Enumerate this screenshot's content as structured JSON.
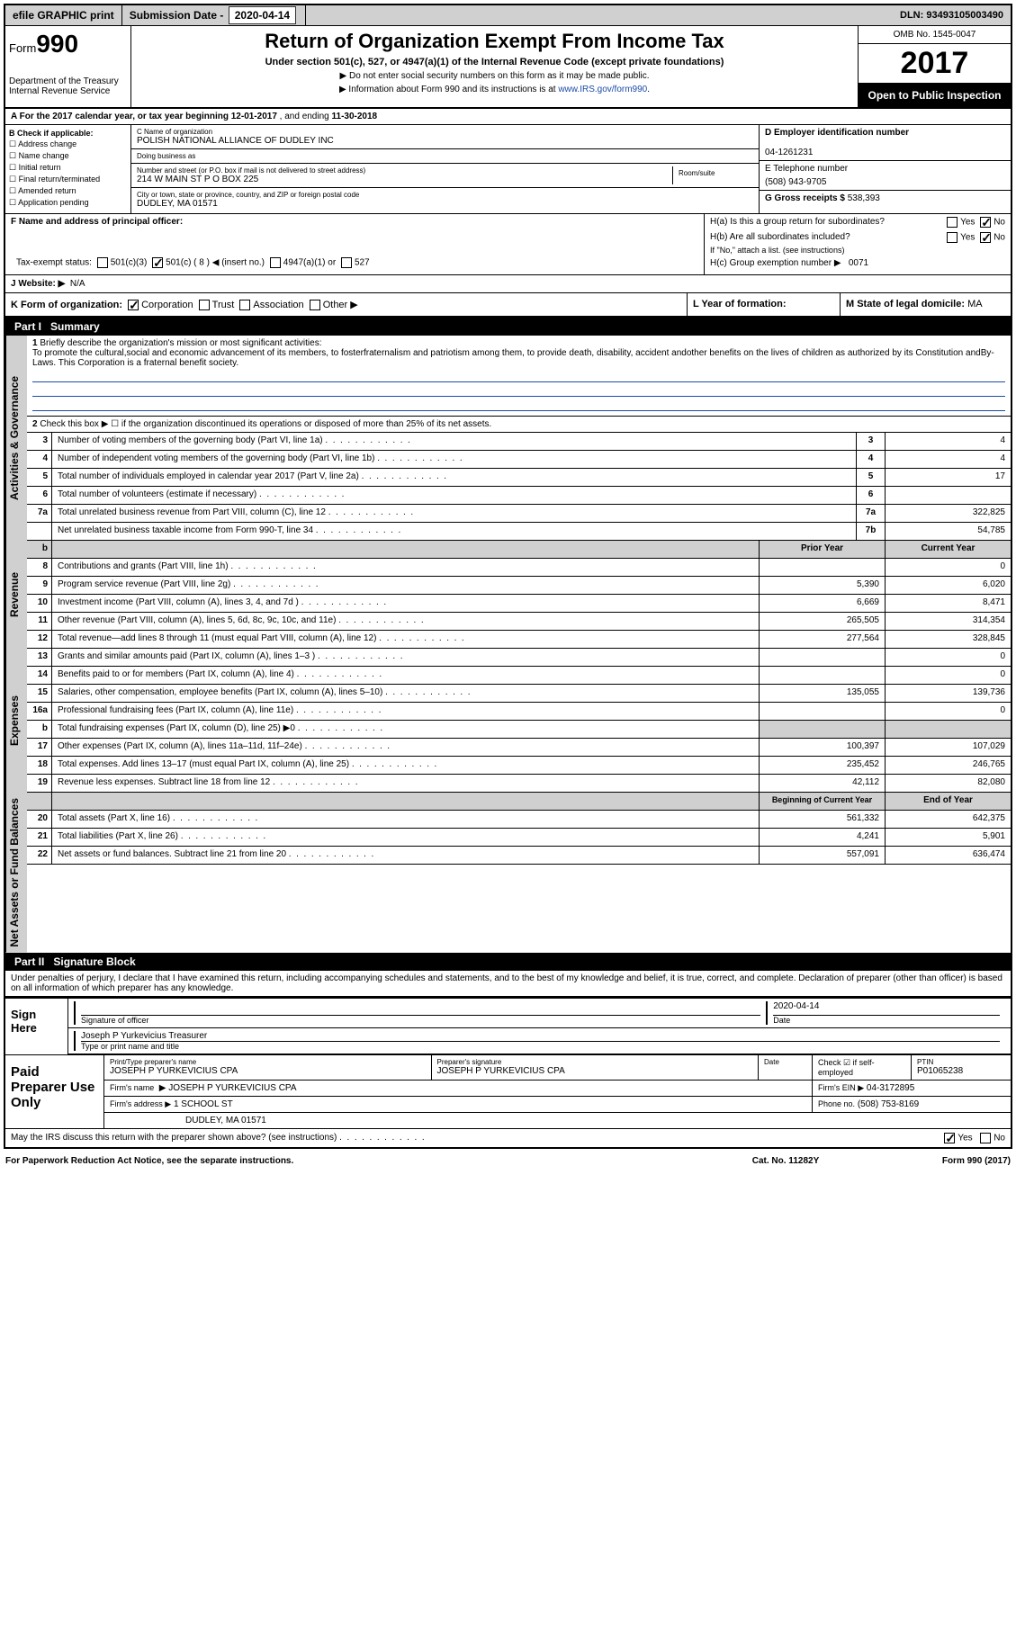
{
  "topbar": {
    "efile": "efile GRAPHIC print",
    "subdate_lbl": "Submission Date",
    "subdate": "2020-04-14",
    "dln_lbl": "DLN:",
    "dln": "93493105003490"
  },
  "hdr": {
    "form": "Form",
    "num": "990",
    "title": "Return of Organization Exempt From Income Tax",
    "sub": "Under section 501(c), 527, or 4947(a)(1) of the Internal Revenue Code (except private foundations)",
    "note1": "▶ Do not enter social security numbers on this form as it may be made public.",
    "note2": "▶ Information about Form 990 and its instructions is at ",
    "link": "www.IRS.gov/form990",
    "dept": "Department of the Treasury",
    "irs": "Internal Revenue Service",
    "omb": "OMB No. 1545-0047",
    "year": "2017",
    "open": "Open to Public Inspection"
  },
  "A": {
    "txt": "A For the 2017 calendar year, or tax year beginning ",
    "begin": "12-01-2017",
    "mid": " , and ending ",
    "end": "11-30-2018"
  },
  "B": {
    "lbl": "B Check if applicable:",
    "opts": [
      "Address change",
      "Name change",
      "Initial return",
      "Final return/terminated",
      "Amended return",
      "Application pending"
    ]
  },
  "C": {
    "name_lbl": "C Name of organization",
    "name": "POLISH NATIONAL ALLIANCE OF DUDLEY INC",
    "dba_lbl": "Doing business as",
    "dba": "",
    "addr_lbl": "Number and street (or P.O. box if mail is not delivered to street address)",
    "addr": "214 W MAIN ST P O BOX 225",
    "room_lbl": "Room/suite",
    "room": "",
    "city_lbl": "City or town, state or province, country, and ZIP or foreign postal code",
    "city": "DUDLEY, MA  01571"
  },
  "D": {
    "lbl": "D Employer identification number",
    "val": "04-1261231"
  },
  "E": {
    "lbl": "E Telephone number",
    "val": "(508) 943-9705"
  },
  "G": {
    "lbl": "G Gross receipts $",
    "val": "538,393"
  },
  "F": {
    "lbl": "F Name and address of principal officer:",
    "val": ""
  },
  "H": {
    "a": "H(a)  Is this a group return for subordinates?",
    "a_no": "No",
    "a_yes": "Yes",
    "b": "H(b)  Are all subordinates included?",
    "b_no": "No",
    "b_yes": "Yes",
    "b_note": "If \"No,\" attach a list. (see instructions)",
    "c": "H(c)  Group exemption number ▶",
    "c_val": "0071"
  },
  "I": {
    "lbl": "Tax-exempt status:",
    "o1": "501(c)(3)",
    "o2": "501(c) ( 8 ) ◀ (insert no.)",
    "o3": "4947(a)(1) or",
    "o4": "527"
  },
  "J": {
    "lbl": "J  Website: ▶",
    "val": "N/A"
  },
  "K": {
    "lbl": "K Form of organization:",
    "o1": "Corporation",
    "o2": "Trust",
    "o3": "Association",
    "o4": "Other ▶"
  },
  "L": {
    "lbl": "L Year of formation:",
    "val": ""
  },
  "M": {
    "lbl": "M State of legal domicile:",
    "val": "MA"
  },
  "part1": {
    "lbl": "Part I",
    "title": "Summary"
  },
  "s1": {
    "lbl": "1",
    "txt": "Briefly describe the organization's mission or most significant activities:",
    "desc": "To promote the cultural,social and economic advancement of its members, to fosterfraternalism and patriotism among them, to provide death, disability, accident andother benefits on the lives of children as authorized by its Constitution andBy-Laws. This Corporation is a fraternal benefit society."
  },
  "s2": {
    "lbl": "2",
    "txt": "Check this box ▶ ☐  if the organization discontinued its operations or disposed of more than 25% of its net assets."
  },
  "sgov": [
    {
      "n": "3",
      "t": "Number of voting members of the governing body (Part VI, line 1a)",
      "b": "3",
      "v": "4"
    },
    {
      "n": "4",
      "t": "Number of independent voting members of the governing body (Part VI, line 1b)",
      "b": "4",
      "v": "4"
    },
    {
      "n": "5",
      "t": "Total number of individuals employed in calendar year 2017 (Part V, line 2a)",
      "b": "5",
      "v": "17"
    },
    {
      "n": "6",
      "t": "Total number of volunteers (estimate if necessary)",
      "b": "6",
      "v": ""
    },
    {
      "n": "7a",
      "t": "Total unrelated business revenue from Part VIII, column (C), line 12",
      "b": "7a",
      "v": "322,825"
    },
    {
      "n": "",
      "t": "Net unrelated business taxable income from Form 990-T, line 34",
      "b": "7b",
      "v": "54,785"
    }
  ],
  "rev_hdr": {
    "b": "b",
    "py": "Prior Year",
    "cy": "Current Year"
  },
  "rev": [
    {
      "n": "8",
      "t": "Contributions and grants (Part VIII, line 1h)",
      "p": "",
      "c": "0"
    },
    {
      "n": "9",
      "t": "Program service revenue (Part VIII, line 2g)",
      "p": "5,390",
      "c": "6,020"
    },
    {
      "n": "10",
      "t": "Investment income (Part VIII, column (A), lines 3, 4, and 7d )",
      "p": "6,669",
      "c": "8,471"
    },
    {
      "n": "11",
      "t": "Other revenue (Part VIII, column (A), lines 5, 6d, 8c, 9c, 10c, and 11e)",
      "p": "265,505",
      "c": "314,354"
    },
    {
      "n": "12",
      "t": "Total revenue—add lines 8 through 11 (must equal Part VIII, column (A), line 12)",
      "p": "277,564",
      "c": "328,845"
    }
  ],
  "exp": [
    {
      "n": "13",
      "t": "Grants and similar amounts paid (Part IX, column (A), lines 1–3 )",
      "p": "",
      "c": "0"
    },
    {
      "n": "14",
      "t": "Benefits paid to or for members (Part IX, column (A), line 4)",
      "p": "",
      "c": "0"
    },
    {
      "n": "15",
      "t": "Salaries, other compensation, employee benefits (Part IX, column (A), lines 5–10)",
      "p": "135,055",
      "c": "139,736"
    },
    {
      "n": "16a",
      "t": "Professional fundraising fees (Part IX, column (A), line 11e)",
      "p": "",
      "c": "0"
    },
    {
      "n": "b",
      "t": "Total fundraising expenses (Part IX, column (D), line 25) ▶0",
      "p": "",
      "c": "",
      "gray": true
    },
    {
      "n": "17",
      "t": "Other expenses (Part IX, column (A), lines 11a–11d, 11f–24e)",
      "p": "100,397",
      "c": "107,029"
    },
    {
      "n": "18",
      "t": "Total expenses. Add lines 13–17 (must equal Part IX, column (A), line 25)",
      "p": "235,452",
      "c": "246,765"
    },
    {
      "n": "19",
      "t": "Revenue less expenses. Subtract line 18 from line 12",
      "p": "42,112",
      "c": "82,080"
    }
  ],
  "na_hdr": {
    "py": "Beginning of Current Year",
    "cy": "End of Year"
  },
  "na": [
    {
      "n": "20",
      "t": "Total assets (Part X, line 16)",
      "p": "561,332",
      "c": "642,375"
    },
    {
      "n": "21",
      "t": "Total liabilities (Part X, line 26)",
      "p": "4,241",
      "c": "5,901"
    },
    {
      "n": "22",
      "t": "Net assets or fund balances. Subtract line 21 from line 20",
      "p": "557,091",
      "c": "636,474"
    }
  ],
  "part2": {
    "lbl": "Part II",
    "title": "Signature Block"
  },
  "perj": "Under penalties of perjury, I declare that I have examined this return, including accompanying schedules and statements, and to the best of my knowledge and belief, it is true, correct, and complete. Declaration of preparer (other than officer) is based on all information of which preparer has any knowledge.",
  "sign": {
    "lbl": "Sign Here",
    "sig_lbl": "Signature of officer",
    "date": "2020-04-14",
    "date_lbl": "Date",
    "name": "Joseph P Yurkevicius  Treasurer",
    "name_lbl": "Type or print name and title"
  },
  "prep": {
    "lbl": "Paid Preparer Use Only",
    "r1": {
      "a_lbl": "Print/Type preparer's name",
      "a": "JOSEPH P YURKEVICIUS CPA",
      "b_lbl": "Preparer's signature",
      "b": "JOSEPH P YURKEVICIUS CPA",
      "c_lbl": "Date",
      "c": "",
      "d_lbl": "Check ☑ if self-employed",
      "e_lbl": "PTIN",
      "e": "P01065238"
    },
    "r2": {
      "a_lbl": "Firm's name",
      "a": "▶ JOSEPH P YURKEVICIUS CPA",
      "b_lbl": "Firm's EIN ▶",
      "b": "04-3172895"
    },
    "r3": {
      "a_lbl": "Firm's address ▶",
      "a": "1 SCHOOL ST",
      "b_lbl": "Phone no.",
      "b": "(508) 753-8169"
    },
    "r4": {
      "a": "DUDLEY, MA  01571"
    }
  },
  "may": {
    "txt": "May the IRS discuss this return with the preparer shown above? (see instructions)",
    "yes": "Yes",
    "no": "No"
  },
  "foot": {
    "a": "For Paperwork Reduction Act Notice, see the separate instructions.",
    "b": "Cat. No. 11282Y",
    "c": "Form 990 (2017)"
  },
  "vtabs": {
    "gov": "Activities & Governance",
    "rev": "Revenue",
    "exp": "Expenses",
    "na": "Net Assets or Fund Balances"
  }
}
